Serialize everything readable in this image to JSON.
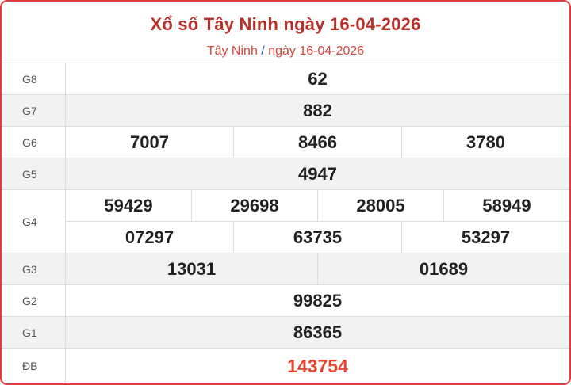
{
  "header": {
    "title": "Xổ số Tây Ninh ngày 16-04-2026",
    "breadcrumb_province": "Tây Ninh",
    "breadcrumb_separator": "/",
    "breadcrumb_date": "ngày 16-04-2026"
  },
  "colors": {
    "border": "#e03c3c",
    "title": "#b8302a",
    "special": "#e8452e"
  },
  "prizes": [
    {
      "label": "G8",
      "lines": [
        [
          "62"
        ]
      ]
    },
    {
      "label": "G7",
      "lines": [
        [
          "882"
        ]
      ]
    },
    {
      "label": "G6",
      "lines": [
        [
          "7007",
          "8466",
          "3780"
        ]
      ]
    },
    {
      "label": "G5",
      "lines": [
        [
          "4947"
        ]
      ]
    },
    {
      "label": "G4",
      "lines": [
        [
          "59429",
          "29698",
          "28005",
          "58949"
        ],
        [
          "07297",
          "63735",
          "53297"
        ]
      ]
    },
    {
      "label": "G3",
      "lines": [
        [
          "13031",
          "01689"
        ]
      ]
    },
    {
      "label": "G2",
      "lines": [
        [
          "99825"
        ]
      ]
    },
    {
      "label": "G1",
      "lines": [
        [
          "86365"
        ]
      ]
    },
    {
      "label": "ĐB",
      "lines": [
        [
          "143754"
        ]
      ]
    }
  ]
}
